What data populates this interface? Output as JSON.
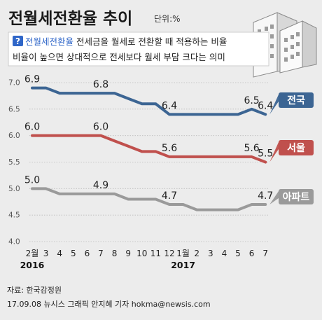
{
  "title": "전월세전환율 추이",
  "unit": "단위:%",
  "description": {
    "badge": "?",
    "term": "전월세전환율",
    "line1_rest": " 전세금을 월세로 전환할 때 적용하는 비율",
    "line2": "비율이 높으면 상대적으로 전세보다 월세 부담 크다는 의미"
  },
  "colors": {
    "national": "#3c6593",
    "seoul": "#c0504d",
    "apartment": "#9a9a9a",
    "grid": "#bbbbbb",
    "accent": "#2f66c8"
  },
  "icon": "apartment-buildings-icon",
  "chart_data": {
    "type": "line",
    "categories": [
      "2월",
      "3",
      "4",
      "5",
      "6",
      "7",
      "8",
      "9",
      "10",
      "11",
      "12",
      "1월",
      "2",
      "3",
      "4",
      "5",
      "6",
      "7"
    ],
    "year_labels": [
      {
        "label": "2016",
        "index": 0
      },
      {
        "label": "2017",
        "index": 11
      }
    ],
    "ylim": [
      4.0,
      7.0
    ],
    "yticks": [
      {
        "value": 7.0,
        "label": "7.0"
      },
      {
        "value": 6.5,
        "label": "6.5"
      },
      {
        "value": 6.0,
        "label": "6.0"
      },
      {
        "value": 5.5,
        "label": "5.5"
      },
      {
        "value": 5.0,
        "label": "5.0"
      },
      {
        "value": 4.5,
        "label": "4.5"
      },
      {
        "value": 4.0,
        "label": "4.0"
      }
    ],
    "grid": true,
    "series": [
      {
        "name": "전국",
        "color_key": "national",
        "values": [
          6.9,
          6.9,
          6.8,
          6.8,
          6.8,
          6.8,
          6.8,
          6.7,
          6.6,
          6.6,
          6.4,
          6.4,
          6.4,
          6.4,
          6.4,
          6.4,
          6.5,
          6.4
        ],
        "labels": [
          {
            "index": 0,
            "text": "6.9"
          },
          {
            "index": 5,
            "text": "6.8"
          },
          {
            "index": 10,
            "text": "6.4"
          },
          {
            "index": 16,
            "text": "6.5"
          },
          {
            "index": 17,
            "text": "6.4"
          }
        ]
      },
      {
        "name": "서울",
        "color_key": "seoul",
        "values": [
          6.0,
          6.0,
          6.0,
          6.0,
          6.0,
          6.0,
          5.9,
          5.8,
          5.7,
          5.7,
          5.6,
          5.6,
          5.6,
          5.6,
          5.6,
          5.6,
          5.6,
          5.5
        ],
        "labels": [
          {
            "index": 0,
            "text": "6.0"
          },
          {
            "index": 5,
            "text": "6.0"
          },
          {
            "index": 10,
            "text": "5.6"
          },
          {
            "index": 16,
            "text": "5.6"
          },
          {
            "index": 17,
            "text": "5.5"
          }
        ]
      },
      {
        "name": "아파트",
        "color_key": "apartment",
        "values": [
          5.0,
          5.0,
          4.9,
          4.9,
          4.9,
          4.9,
          4.9,
          4.8,
          4.8,
          4.8,
          4.7,
          4.7,
          4.6,
          4.6,
          4.6,
          4.6,
          4.7,
          4.7
        ],
        "labels": [
          {
            "index": 0,
            "text": "5.0"
          },
          {
            "index": 5,
            "text": "4.9"
          },
          {
            "index": 10,
            "text": "4.7"
          },
          {
            "index": 17,
            "text": "4.7"
          }
        ]
      }
    ]
  },
  "footer": {
    "source": "자료: 한국감정원",
    "credit": "17.09.08 뉴시스 그래픽 안지혜 기자 hokma@newsis.com"
  }
}
